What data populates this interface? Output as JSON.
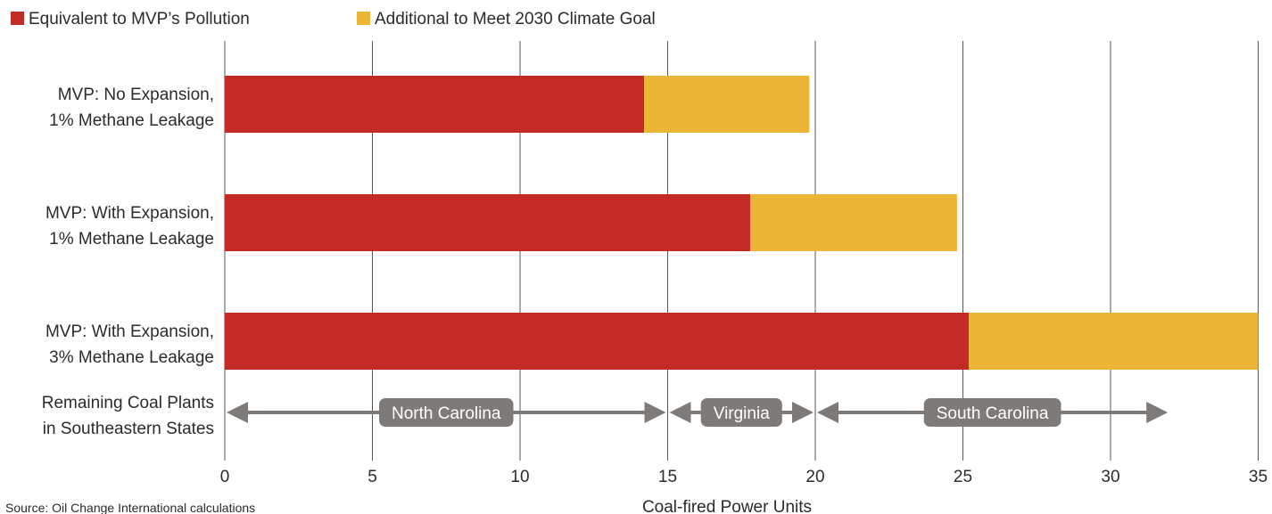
{
  "chart_data": {
    "type": "bar",
    "orientation": "horizontal",
    "stacked": true,
    "categories": [
      [
        "MVP: No Expansion,",
        "1% Methane Leakage"
      ],
      [
        "MVP: With Expansion,",
        "1% Methane Leakage"
      ],
      [
        "MVP: With Expansion,",
        "3% Methane Leakage"
      ]
    ],
    "series": [
      {
        "name": "Equivalent to MVP’s Pollution",
        "color": "#c42b26",
        "values": [
          14.2,
          17.8,
          25.2
        ]
      },
      {
        "name": "Additional to Meet 2030 Climate Goal",
        "color": "#ecb536",
        "values": [
          5.6,
          7.0,
          9.8
        ]
      }
    ],
    "xlabel": "Coal-fired Power Units",
    "xlim": [
      0,
      35
    ],
    "xticks": [
      0,
      5,
      10,
      15,
      20,
      25,
      30,
      35
    ],
    "grid": "vertical",
    "legend_placement": "top-left",
    "source": "Source: Oil Change International calculations",
    "regions_label": [
      "Remaining Coal Plants",
      "in Southeastern States"
    ],
    "regions": [
      {
        "name": "North Carolina",
        "start": 0,
        "end": 15
      },
      {
        "name": "Virginia",
        "start": 15,
        "end": 20
      },
      {
        "name": "South Carolina",
        "start": 20,
        "end": 32
      }
    ],
    "region_color": "#7d7a78",
    "grid_color": "#555555"
  }
}
